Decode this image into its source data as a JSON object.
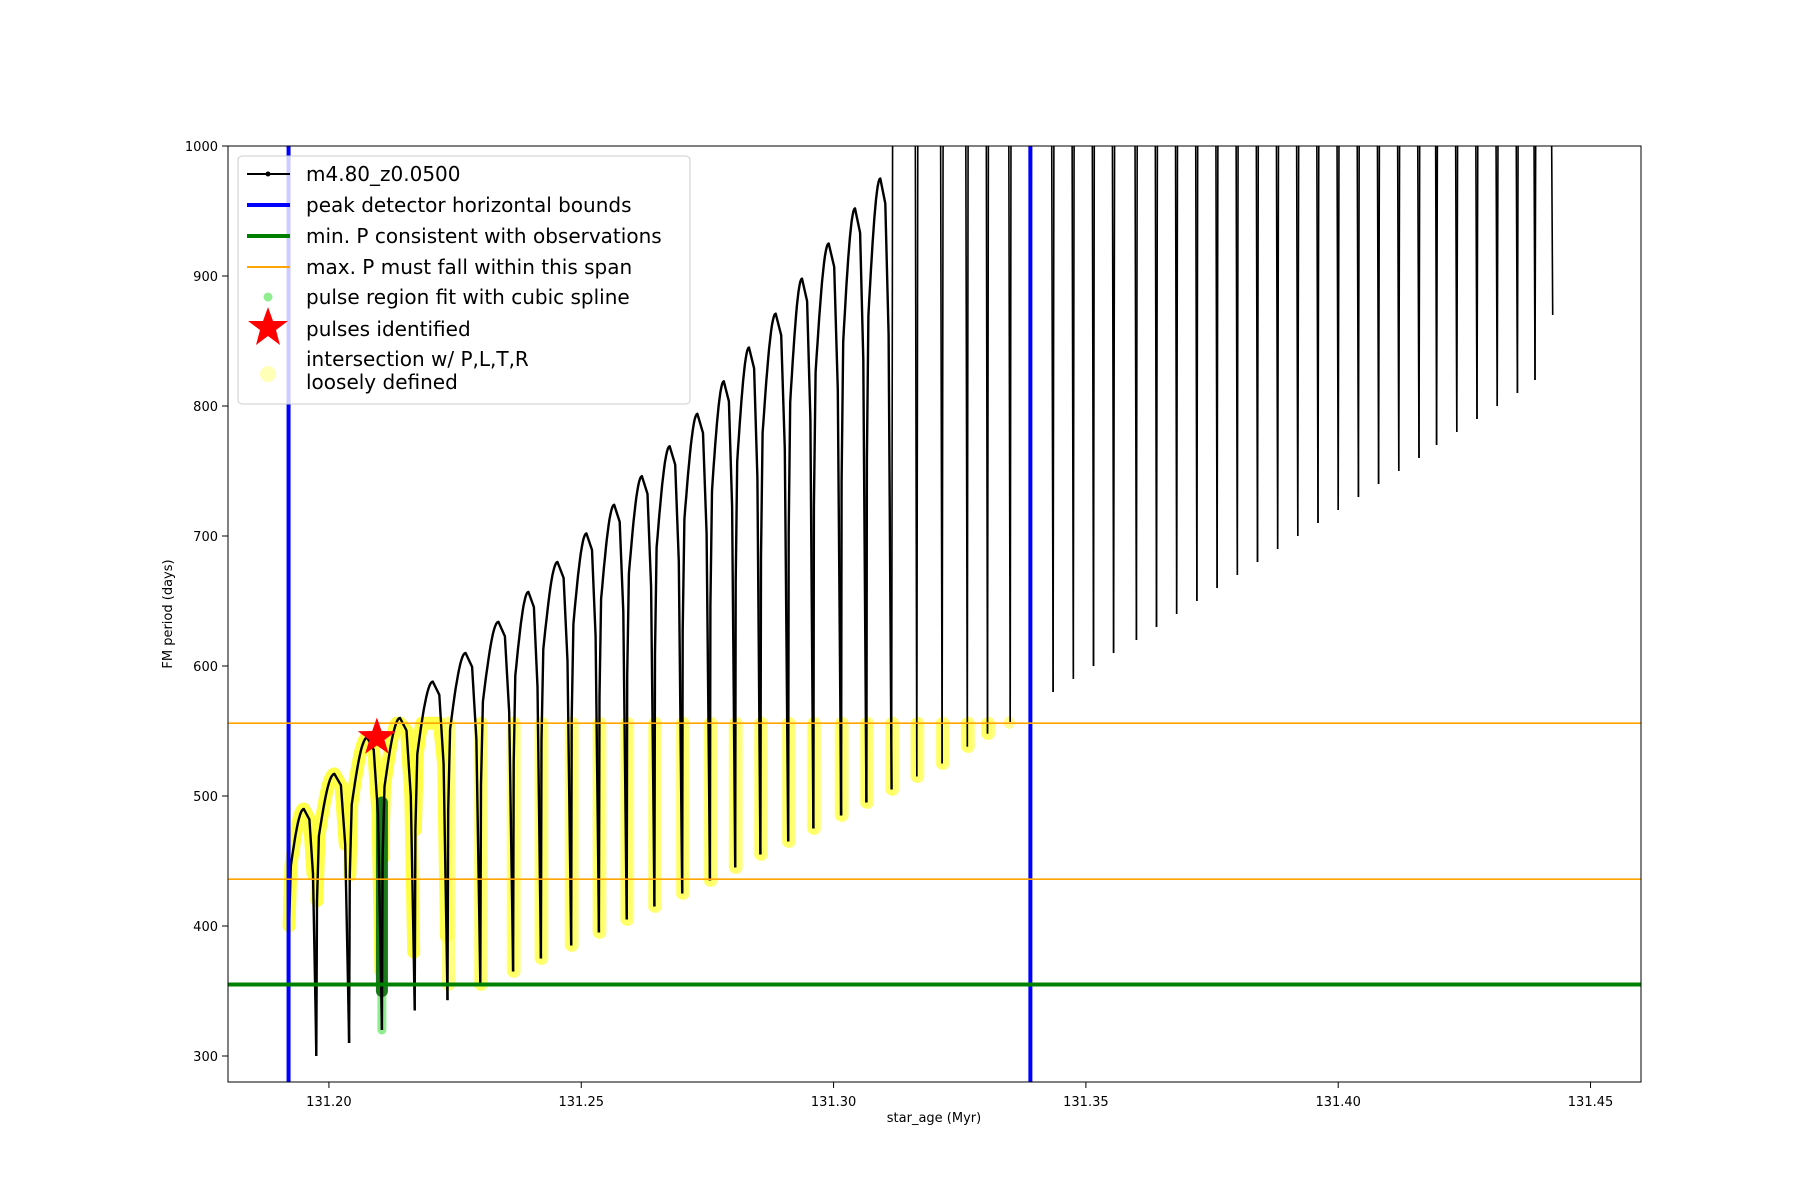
{
  "chart_data": {
    "type": "line",
    "title": "",
    "xlabel": "star_age (Myr)",
    "ylabel": "FM period (days)",
    "xlim": [
      131.18,
      131.46
    ],
    "ylim": [
      280,
      1000
    ],
    "xticks": [
      131.2,
      131.25,
      131.3,
      131.35,
      131.4,
      131.45
    ],
    "xtick_labels": [
      "131.20",
      "131.25",
      "131.30",
      "131.35",
      "131.40",
      "131.45"
    ],
    "yticks": [
      300,
      400,
      500,
      600,
      700,
      800,
      900,
      1000
    ],
    "ytick_labels": [
      "300",
      "400",
      "500",
      "600",
      "700",
      "800",
      "900",
      "1000"
    ],
    "legend": {
      "placement": "upper-left",
      "entries": [
        {
          "label": "m4.80_z0.0500",
          "kind": "line-marker",
          "color": "#000000"
        },
        {
          "label": "peak detector horizontal bounds",
          "kind": "line",
          "color": "#0000ff"
        },
        {
          "label": "min. P consistent with observations",
          "kind": "line",
          "color": "#008000"
        },
        {
          "label": "max. P must fall within this span",
          "kind": "line",
          "color": "#ffa500"
        },
        {
          "label": "pulse region fit with cubic spline",
          "kind": "dot",
          "color": "#90ee90"
        },
        {
          "label": "pulses identified",
          "kind": "star",
          "color": "#ff0000"
        },
        {
          "label": "intersection w/ P,L,T,R",
          "label2": "loosely defined",
          "kind": "dot",
          "color": "#ffff99"
        }
      ]
    },
    "reference_lines": {
      "vertical_blue": [
        131.192,
        131.339
      ],
      "horizontal_green": 355,
      "horizontal_orange": [
        436,
        556
      ]
    },
    "pulse_identified": {
      "x": 131.2095,
      "y": 545
    },
    "spline_region": {
      "x": 131.2105,
      "y_min": 320,
      "y_max": 495
    },
    "series": [
      {
        "name": "m4.80_z0.0500",
        "color": "#000000",
        "start_age": [
          131.192,
          131.1975,
          131.204,
          131.2105,
          131.217,
          131.2235,
          131.23,
          131.2365,
          131.242,
          131.248,
          131.2535,
          131.259,
          131.2645,
          131.27,
          131.2755,
          131.2805,
          131.2855,
          131.291,
          131.296,
          131.3015,
          131.3065,
          131.3115,
          131.3165,
          131.3215,
          131.3265,
          131.3305,
          131.335,
          131.339,
          131.3435,
          131.3475,
          131.3515,
          131.3555,
          131.36,
          131.364,
          131.368,
          131.372,
          131.376,
          131.38,
          131.384,
          131.388,
          131.392,
          131.396,
          131.4,
          131.404,
          131.408,
          131.412,
          131.416,
          131.4195,
          131.4235,
          131.4275,
          131.4315,
          131.4355,
          131.439
        ],
        "cycle_min_period": [
          290,
          300,
          310,
          320,
          335,
          343,
          355,
          365,
          375,
          385,
          395,
          405,
          415,
          425,
          435,
          445,
          455,
          465,
          475,
          485,
          495,
          505,
          515,
          525,
          538,
          548,
          557,
          570,
          580,
          590,
          600,
          610,
          620,
          630,
          640,
          650,
          660,
          670,
          680,
          690,
          700,
          710,
          720,
          730,
          740,
          750,
          760,
          770,
          780,
          790,
          800,
          810,
          820
        ],
        "cycle_peak_period": [
          490,
          517,
          545,
          560,
          588,
          610,
          634,
          657,
          680,
          702,
          724,
          746,
          769,
          794,
          819,
          845,
          871,
          898,
          925,
          952,
          975,
          1000,
          1000,
          1000,
          1000,
          1000,
          1000,
          1000,
          1000,
          1000,
          1000,
          1000,
          1000,
          1000,
          1000,
          1000,
          1000,
          1000,
          1000,
          1000,
          1000,
          1000,
          1000,
          1000,
          1000,
          1000,
          1000,
          1000,
          1000,
          1000,
          1000,
          1000,
          1000
        ],
        "final_age": 131.4425,
        "final_period": 870
      }
    ]
  }
}
